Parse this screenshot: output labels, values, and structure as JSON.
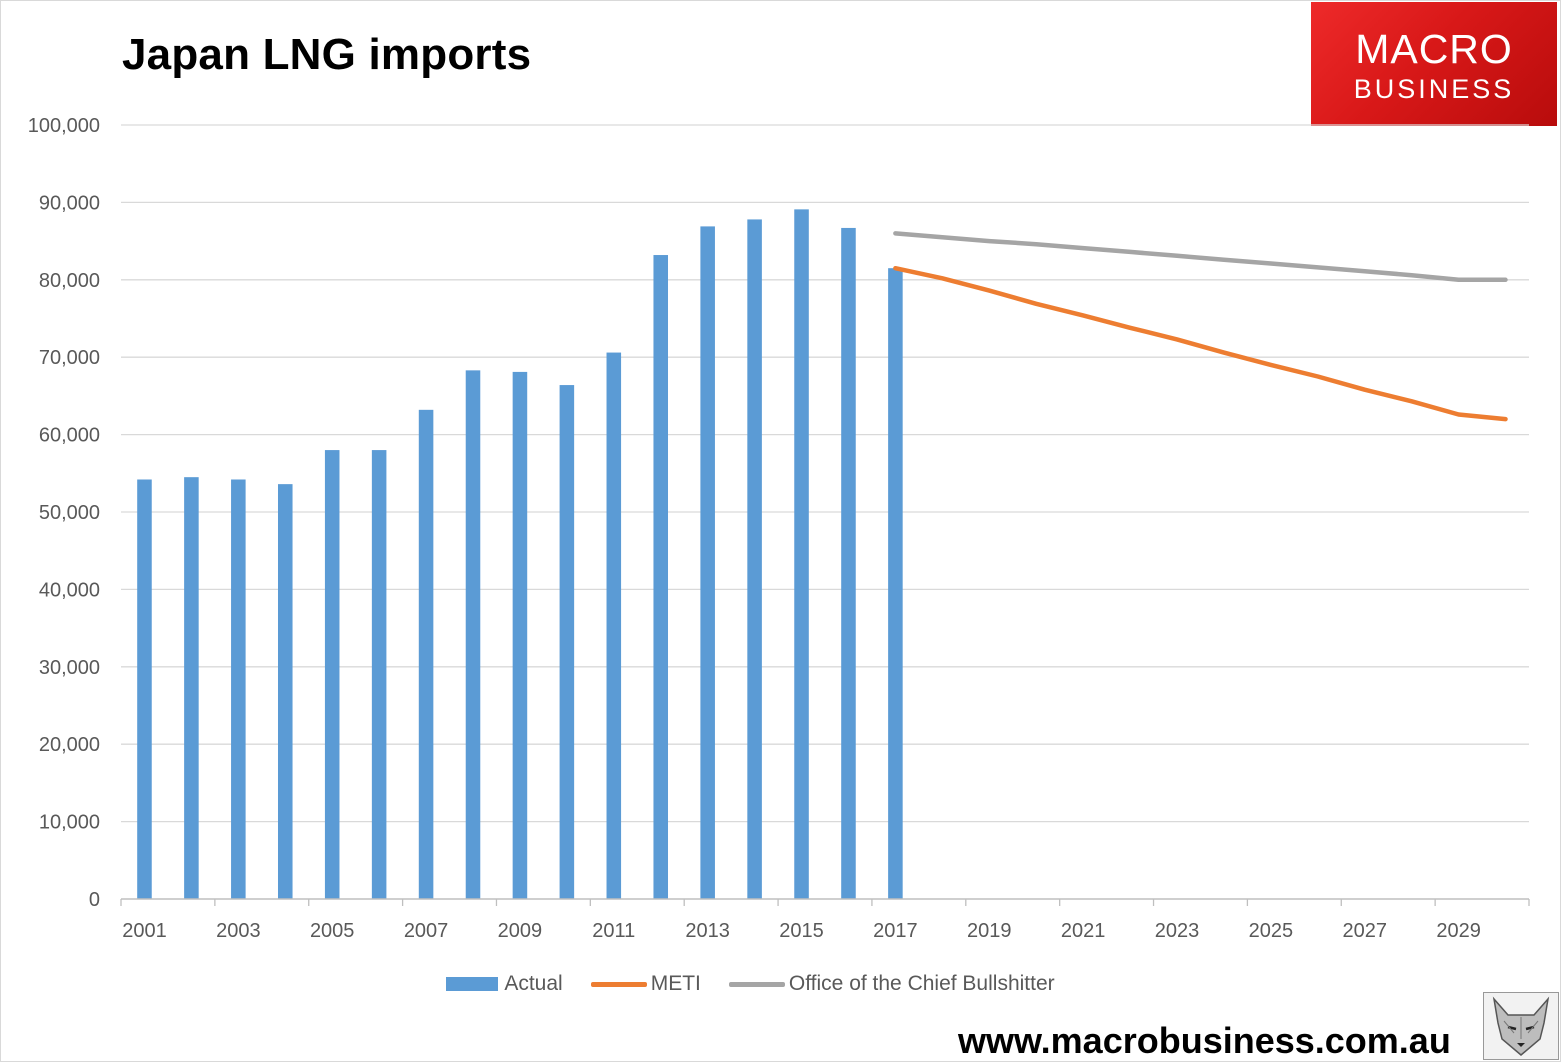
{
  "chart_data": {
    "type": "bar",
    "title": "Japan LNG imports",
    "xlabel": "",
    "ylabel": "",
    "ylim": [
      0,
      100000
    ],
    "yticks": [
      "0",
      "10,000",
      "20,000",
      "30,000",
      "40,000",
      "50,000",
      "60,000",
      "70,000",
      "80,000",
      "90,000",
      "100,000"
    ],
    "x_tick_labels": [
      "2001",
      "2003",
      "2005",
      "2007",
      "2009",
      "2011",
      "2013",
      "2015",
      "2017",
      "2019",
      "2021",
      "2023",
      "2025",
      "2027",
      "2029"
    ],
    "x": [
      2001,
      2002,
      2003,
      2004,
      2005,
      2006,
      2007,
      2008,
      2009,
      2010,
      2011,
      2012,
      2013,
      2014,
      2015,
      2016,
      2017,
      2018,
      2019,
      2020,
      2021,
      2022,
      2023,
      2024,
      2025,
      2026,
      2027,
      2028,
      2029,
      2030
    ],
    "grid": true,
    "legend_position": "bottom",
    "series": [
      {
        "name": "Actual",
        "kind": "bar",
        "color": "#5b9bd5",
        "values": [
          54200,
          54500,
          54200,
          53600,
          58000,
          58000,
          63200,
          68300,
          68100,
          66400,
          70600,
          83200,
          86900,
          87800,
          89100,
          86700,
          81500,
          null,
          null,
          null,
          null,
          null,
          null,
          null,
          null,
          null,
          null,
          null,
          null,
          null
        ]
      },
      {
        "name": "METI",
        "kind": "line",
        "color": "#ed7d31",
        "values": [
          null,
          null,
          null,
          null,
          null,
          null,
          null,
          null,
          null,
          null,
          null,
          null,
          null,
          null,
          null,
          null,
          81500,
          80200,
          78600,
          76900,
          75400,
          73800,
          72300,
          70600,
          69000,
          67500,
          65800,
          64300,
          62600,
          62000
        ]
      },
      {
        "name": "Office of the Chief Bullshitter",
        "kind": "line",
        "color": "#a5a5a5",
        "values": [
          null,
          null,
          null,
          null,
          null,
          null,
          null,
          null,
          null,
          null,
          null,
          null,
          null,
          null,
          null,
          null,
          86000,
          85500,
          85000,
          84600,
          84100,
          83600,
          83100,
          82600,
          82100,
          81600,
          81100,
          80600,
          80000,
          80000
        ]
      }
    ]
  },
  "branding": {
    "logo_line1": "MACRO",
    "logo_line2": "BUSINESS",
    "url": "www.macrobusiness.com.au"
  }
}
